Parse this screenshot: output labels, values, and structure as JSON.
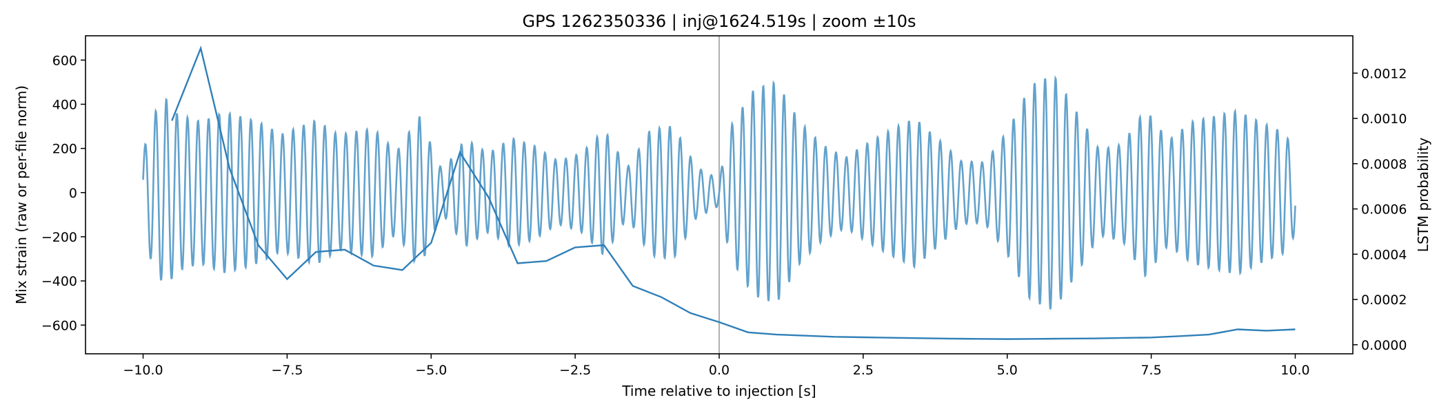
{
  "chart_data": {
    "type": "line",
    "title": "GPS 1262350336 | inj@1624.519s | zoom ±10s",
    "xlabel": "Time relative to injection [s]",
    "ylabel": "Mix strain (raw or per-file norm)",
    "y2label": "LSTM probability",
    "xlim": [
      -11.0,
      11.0
    ],
    "ylim": [
      -730,
      710
    ],
    "y2lim": [
      -4e-05,
      0.001365
    ],
    "xticks": [
      -10.0,
      -7.5,
      -5.0,
      -2.5,
      0.0,
      2.5,
      5.0,
      7.5,
      10.0
    ],
    "xtick_labels": [
      "−10.0",
      "−7.5",
      "−5.0",
      "−2.5",
      "0.0",
      "2.5",
      "5.0",
      "7.5",
      "10.0"
    ],
    "yticks": [
      -600,
      -400,
      -200,
      0,
      200,
      400,
      600
    ],
    "ytick_labels": [
      "−600",
      "−400",
      "−200",
      "0",
      "200",
      "400",
      "600"
    ],
    "y2ticks": [
      0.0,
      0.0002,
      0.0004,
      0.0006,
      0.0008,
      0.001,
      0.0012
    ],
    "y2tick_labels": [
      "0.0000",
      "0.0002",
      "0.0004",
      "0.0006",
      "0.0008",
      "0.0010",
      "0.0012"
    ],
    "vline_x": 0.0,
    "grid": false,
    "series": [
      {
        "axis": "left",
        "color": "#5b9dc9",
        "style": "oscillating strain",
        "t_start": -10.0,
        "t_end": 10.0,
        "osc_freq_hz": 5.5,
        "envelope": [
          [
            -10.0,
            290
          ],
          [
            -9.8,
            560
          ],
          [
            -9.6,
            640
          ],
          [
            -9.4,
            520
          ],
          [
            -9.0,
            440
          ],
          [
            -8.6,
            460
          ],
          [
            -8.0,
            360
          ],
          [
            -7.6,
            280
          ],
          [
            -7.0,
            330
          ],
          [
            -6.6,
            260
          ],
          [
            -6.0,
            300
          ],
          [
            -5.6,
            200
          ],
          [
            -5.2,
            400
          ],
          [
            -4.8,
            120
          ],
          [
            -4.4,
            330
          ],
          [
            -4.0,
            260
          ],
          [
            -3.6,
            380
          ],
          [
            -3.2,
            330
          ],
          [
            -2.8,
            220
          ],
          [
            -2.4,
            260
          ],
          [
            -2.0,
            390
          ],
          [
            -1.6,
            140
          ],
          [
            -1.2,
            330
          ],
          [
            -0.8,
            330
          ],
          [
            -0.4,
            120
          ],
          [
            0.0,
            60
          ],
          [
            0.2,
            300
          ],
          [
            0.6,
            470
          ],
          [
            1.0,
            520
          ],
          [
            1.4,
            350
          ],
          [
            1.8,
            250
          ],
          [
            2.2,
            200
          ],
          [
            2.6,
            310
          ],
          [
            3.0,
            420
          ],
          [
            3.4,
            520
          ],
          [
            3.8,
            380
          ],
          [
            4.2,
            220
          ],
          [
            4.6,
            200
          ],
          [
            5.0,
            380
          ],
          [
            5.4,
            610
          ],
          [
            5.8,
            620
          ],
          [
            6.2,
            400
          ],
          [
            6.6,
            200
          ],
          [
            7.0,
            220
          ],
          [
            7.4,
            380
          ],
          [
            7.8,
            240
          ],
          [
            8.2,
            340
          ],
          [
            8.6,
            390
          ],
          [
            9.0,
            450
          ],
          [
            9.4,
            420
          ],
          [
            9.8,
            390
          ],
          [
            10.0,
            280
          ]
        ]
      },
      {
        "axis": "right",
        "color": "#2f7fb8",
        "style": "line",
        "x": [
          -9.5,
          -9.0,
          -8.5,
          -8.0,
          -7.5,
          -7.0,
          -6.5,
          -6.0,
          -5.5,
          -5.0,
          -4.5,
          -4.0,
          -3.5,
          -3.0,
          -2.5,
          -2.0,
          -1.5,
          -1.0,
          -0.5,
          0.0,
          0.5,
          1.0,
          1.5,
          2.0,
          2.5,
          3.0,
          3.5,
          4.0,
          4.5,
          5.0,
          5.5,
          6.0,
          6.5,
          7.0,
          7.5,
          8.0,
          8.5,
          9.0,
          9.5,
          10.0
        ],
        "y": [
          0.00099,
          0.00131,
          0.00078,
          0.00044,
          0.00029,
          0.00041,
          0.00042,
          0.00035,
          0.00033,
          0.00045,
          0.00085,
          0.00065,
          0.00036,
          0.00037,
          0.00043,
          0.00044,
          0.00026,
          0.00021,
          0.00014,
          0.0001,
          5.5e-05,
          4.5e-05,
          4e-05,
          3.5e-05,
          3.3e-05,
          3.1e-05,
          2.9e-05,
          2.7e-05,
          2.6e-05,
          2.5e-05,
          2.6e-05,
          2.7e-05,
          2.8e-05,
          3e-05,
          3.2e-05,
          3.8e-05,
          4.5e-05,
          6.8e-05,
          6.2e-05,
          6.8e-05
        ]
      }
    ]
  }
}
